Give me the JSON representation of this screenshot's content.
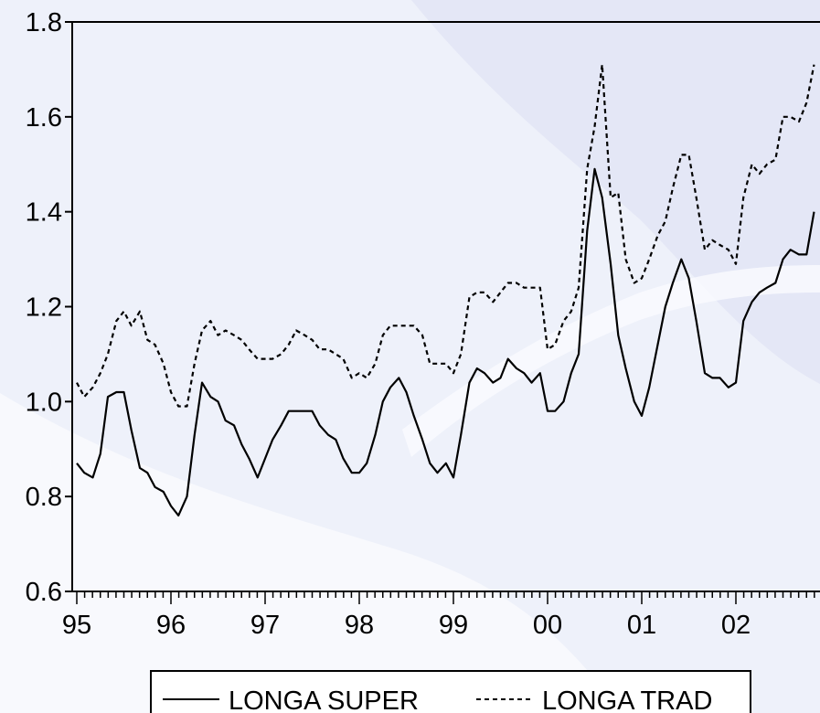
{
  "chart_data": {
    "type": "line",
    "title": "",
    "xlabel": "",
    "ylabel": "",
    "ylim": [
      0.6,
      1.8
    ],
    "xlim": [
      1995.0,
      2002.83
    ],
    "x_tick_labels": [
      "95",
      "96",
      "97",
      "98",
      "99",
      "00",
      "01",
      "02"
    ],
    "y_tick_labels": [
      "0.6",
      "0.8",
      "1.0",
      "1.2",
      "1.4",
      "1.6",
      "1.8"
    ],
    "y_ticks": [
      0.6,
      0.8,
      1.0,
      1.2,
      1.4,
      1.6,
      1.8
    ],
    "grid": false,
    "legend_position": "bottom",
    "series": [
      {
        "name": "LONGA SUPER",
        "style": "solid",
        "color": "#000000",
        "points": [
          [
            1995.0,
            0.87
          ],
          [
            1995.08,
            0.85
          ],
          [
            1995.17,
            0.84
          ],
          [
            1995.25,
            0.89
          ],
          [
            1995.33,
            1.01
          ],
          [
            1995.42,
            1.02
          ],
          [
            1995.5,
            1.02
          ],
          [
            1995.58,
            0.94
          ],
          [
            1995.67,
            0.86
          ],
          [
            1995.75,
            0.85
          ],
          [
            1995.83,
            0.82
          ],
          [
            1995.92,
            0.81
          ],
          [
            1996.0,
            0.78
          ],
          [
            1996.08,
            0.76
          ],
          [
            1996.17,
            0.8
          ],
          [
            1996.25,
            0.93
          ],
          [
            1996.33,
            1.04
          ],
          [
            1996.42,
            1.01
          ],
          [
            1996.5,
            1.0
          ],
          [
            1996.58,
            0.96
          ],
          [
            1996.67,
            0.95
          ],
          [
            1996.75,
            0.91
          ],
          [
            1996.83,
            0.88
          ],
          [
            1996.92,
            0.84
          ],
          [
            1997.0,
            0.88
          ],
          [
            1997.08,
            0.92
          ],
          [
            1997.17,
            0.95
          ],
          [
            1997.25,
            0.98
          ],
          [
            1997.33,
            0.98
          ],
          [
            1997.42,
            0.98
          ],
          [
            1997.5,
            0.98
          ],
          [
            1997.58,
            0.95
          ],
          [
            1997.67,
            0.93
          ],
          [
            1997.75,
            0.92
          ],
          [
            1997.83,
            0.88
          ],
          [
            1997.92,
            0.85
          ],
          [
            1998.0,
            0.85
          ],
          [
            1998.08,
            0.87
          ],
          [
            1998.17,
            0.93
          ],
          [
            1998.25,
            1.0
          ],
          [
            1998.33,
            1.03
          ],
          [
            1998.42,
            1.05
          ],
          [
            1998.5,
            1.02
          ],
          [
            1998.58,
            0.97
          ],
          [
            1998.67,
            0.92
          ],
          [
            1998.75,
            0.87
          ],
          [
            1998.83,
            0.85
          ],
          [
            1998.92,
            0.87
          ],
          [
            1999.0,
            0.84
          ],
          [
            1999.08,
            0.93
          ],
          [
            1999.17,
            1.04
          ],
          [
            1999.25,
            1.07
          ],
          [
            1999.33,
            1.06
          ],
          [
            1999.42,
            1.04
          ],
          [
            1999.5,
            1.05
          ],
          [
            1999.58,
            1.09
          ],
          [
            1999.67,
            1.07
          ],
          [
            1999.75,
            1.06
          ],
          [
            1999.83,
            1.04
          ],
          [
            1999.92,
            1.06
          ],
          [
            2000.0,
            0.98
          ],
          [
            2000.08,
            0.98
          ],
          [
            2000.17,
            1.0
          ],
          [
            2000.25,
            1.06
          ],
          [
            2000.33,
            1.1
          ],
          [
            2000.42,
            1.36
          ],
          [
            2000.5,
            1.49
          ],
          [
            2000.58,
            1.43
          ],
          [
            2000.67,
            1.29
          ],
          [
            2000.75,
            1.14
          ],
          [
            2000.83,
            1.07
          ],
          [
            2000.92,
            1.0
          ],
          [
            2001.0,
            0.97
          ],
          [
            2001.08,
            1.03
          ],
          [
            2001.17,
            1.12
          ],
          [
            2001.25,
            1.2
          ],
          [
            2001.33,
            1.25
          ],
          [
            2001.42,
            1.3
          ],
          [
            2001.5,
            1.26
          ],
          [
            2001.58,
            1.17
          ],
          [
            2001.67,
            1.06
          ],
          [
            2001.75,
            1.05
          ],
          [
            2001.83,
            1.05
          ],
          [
            2001.92,
            1.03
          ],
          [
            2002.0,
            1.04
          ],
          [
            2002.08,
            1.17
          ],
          [
            2002.17,
            1.21
          ],
          [
            2002.25,
            1.23
          ],
          [
            2002.33,
            1.24
          ],
          [
            2002.42,
            1.25
          ],
          [
            2002.5,
            1.3
          ],
          [
            2002.58,
            1.32
          ],
          [
            2002.67,
            1.31
          ],
          [
            2002.75,
            1.31
          ],
          [
            2002.83,
            1.4
          ]
        ]
      },
      {
        "name": "LONGA TRAD",
        "style": "dashed",
        "color": "#000000",
        "points": [
          [
            1995.0,
            1.04
          ],
          [
            1995.08,
            1.01
          ],
          [
            1995.17,
            1.03
          ],
          [
            1995.25,
            1.06
          ],
          [
            1995.33,
            1.1
          ],
          [
            1995.42,
            1.17
          ],
          [
            1995.5,
            1.19
          ],
          [
            1995.58,
            1.16
          ],
          [
            1995.67,
            1.19
          ],
          [
            1995.75,
            1.13
          ],
          [
            1995.83,
            1.12
          ],
          [
            1995.92,
            1.08
          ],
          [
            1996.0,
            1.02
          ],
          [
            1996.08,
            0.99
          ],
          [
            1996.17,
            0.99
          ],
          [
            1996.25,
            1.08
          ],
          [
            1996.33,
            1.15
          ],
          [
            1996.42,
            1.17
          ],
          [
            1996.5,
            1.14
          ],
          [
            1996.58,
            1.15
          ],
          [
            1996.67,
            1.14
          ],
          [
            1996.75,
            1.13
          ],
          [
            1996.83,
            1.11
          ],
          [
            1996.92,
            1.09
          ],
          [
            1997.0,
            1.09
          ],
          [
            1997.08,
            1.09
          ],
          [
            1997.17,
            1.1
          ],
          [
            1997.25,
            1.12
          ],
          [
            1997.33,
            1.15
          ],
          [
            1997.42,
            1.14
          ],
          [
            1997.5,
            1.13
          ],
          [
            1997.58,
            1.11
          ],
          [
            1997.67,
            1.11
          ],
          [
            1997.75,
            1.1
          ],
          [
            1997.83,
            1.09
          ],
          [
            1997.92,
            1.05
          ],
          [
            1998.0,
            1.06
          ],
          [
            1998.08,
            1.05
          ],
          [
            1998.17,
            1.08
          ],
          [
            1998.25,
            1.14
          ],
          [
            1998.33,
            1.16
          ],
          [
            1998.42,
            1.16
          ],
          [
            1998.5,
            1.16
          ],
          [
            1998.58,
            1.16
          ],
          [
            1998.67,
            1.14
          ],
          [
            1998.75,
            1.08
          ],
          [
            1998.83,
            1.08
          ],
          [
            1998.92,
            1.08
          ],
          [
            1999.0,
            1.06
          ],
          [
            1999.08,
            1.1
          ],
          [
            1999.17,
            1.22
          ],
          [
            1999.25,
            1.23
          ],
          [
            1999.33,
            1.23
          ],
          [
            1999.42,
            1.21
          ],
          [
            1999.5,
            1.23
          ],
          [
            1999.58,
            1.25
          ],
          [
            1999.67,
            1.25
          ],
          [
            1999.75,
            1.24
          ],
          [
            1999.83,
            1.24
          ],
          [
            1999.92,
            1.24
          ],
          [
            2000.0,
            1.11
          ],
          [
            2000.08,
            1.12
          ],
          [
            2000.17,
            1.17
          ],
          [
            2000.25,
            1.19
          ],
          [
            2000.33,
            1.24
          ],
          [
            2000.42,
            1.49
          ],
          [
            2000.5,
            1.58
          ],
          [
            2000.58,
            1.71
          ],
          [
            2000.67,
            1.43
          ],
          [
            2000.75,
            1.44
          ],
          [
            2000.83,
            1.3
          ],
          [
            2000.92,
            1.25
          ],
          [
            2001.0,
            1.26
          ],
          [
            2001.08,
            1.3
          ],
          [
            2001.17,
            1.35
          ],
          [
            2001.25,
            1.38
          ],
          [
            2001.33,
            1.45
          ],
          [
            2001.42,
            1.52
          ],
          [
            2001.5,
            1.52
          ],
          [
            2001.58,
            1.43
          ],
          [
            2001.67,
            1.32
          ],
          [
            2001.75,
            1.34
          ],
          [
            2001.83,
            1.33
          ],
          [
            2001.92,
            1.32
          ],
          [
            2002.0,
            1.29
          ],
          [
            2002.08,
            1.43
          ],
          [
            2002.17,
            1.5
          ],
          [
            2002.25,
            1.48
          ],
          [
            2002.33,
            1.5
          ],
          [
            2002.42,
            1.51
          ],
          [
            2002.5,
            1.6
          ],
          [
            2002.58,
            1.6
          ],
          [
            2002.67,
            1.59
          ],
          [
            2002.75,
            1.63
          ],
          [
            2002.83,
            1.71
          ]
        ]
      }
    ]
  }
}
